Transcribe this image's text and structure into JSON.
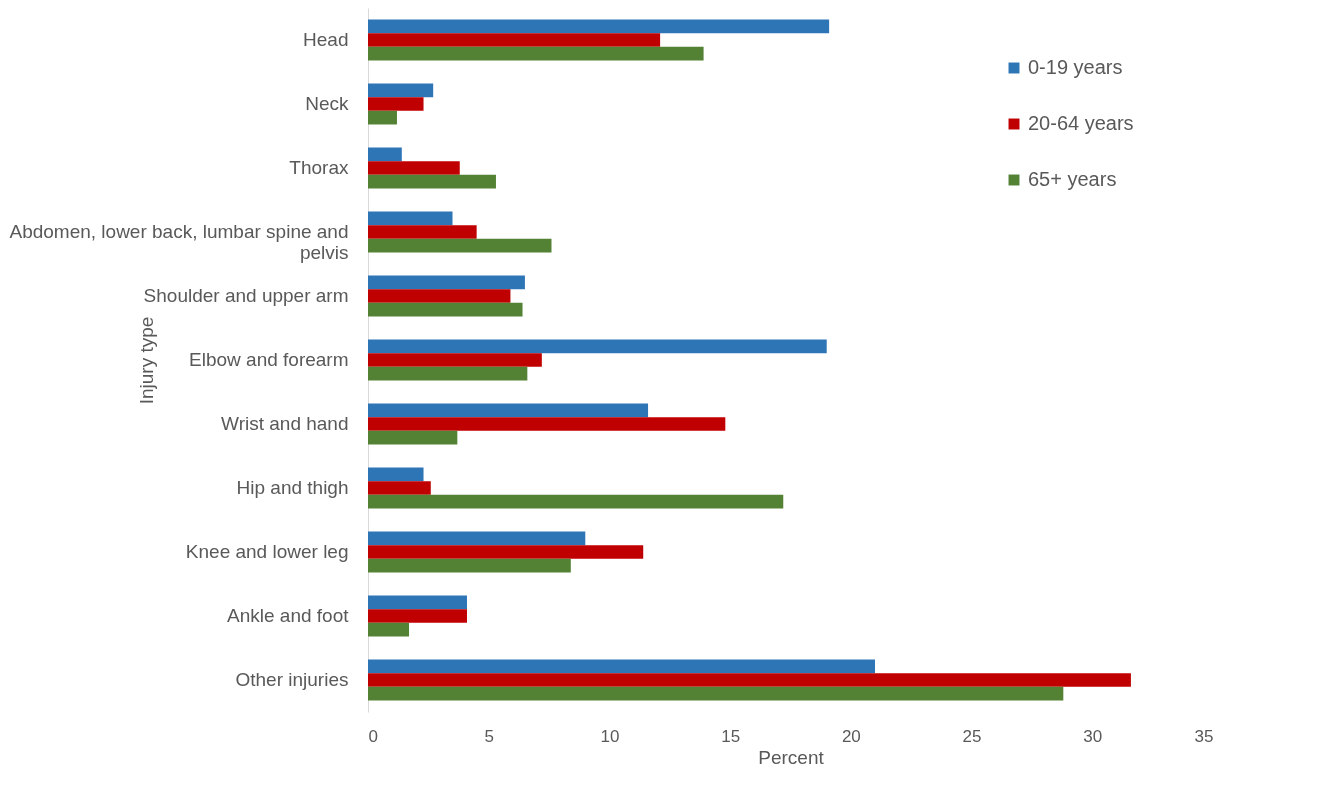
{
  "chart_data": {
    "type": "bar",
    "orientation": "horizontal",
    "xlabel": "Percent",
    "ylabel": "Injury type",
    "categories": [
      "Head",
      "Neck",
      "Thorax",
      "Abdomen, lower back, lumbar spine and pelvis",
      "Shoulder and upper arm",
      "Elbow and forearm",
      "Wrist and hand",
      "Hip and thigh",
      "Knee and lower leg",
      "Ankle and foot",
      "Other injuries"
    ],
    "series": [
      {
        "name": "0-19 years",
        "color": "#2e75b6",
        "values": [
          19.1,
          2.7,
          1.4,
          3.5,
          6.5,
          19.0,
          11.6,
          2.3,
          9.0,
          4.1,
          21.0
        ]
      },
      {
        "name": "20-64 years",
        "color": "#c00000",
        "values": [
          12.1,
          2.3,
          3.8,
          4.5,
          5.9,
          7.2,
          14.8,
          2.6,
          11.4,
          4.1,
          31.6
        ]
      },
      {
        "name": "65+ years",
        "color": "#548235",
        "values": [
          13.9,
          1.2,
          5.3,
          7.6,
          6.4,
          6.6,
          3.7,
          17.2,
          8.4,
          1.7,
          28.8
        ]
      }
    ],
    "xlim": [
      0,
      35
    ],
    "xticks": [
      0,
      5,
      10,
      15,
      20,
      25,
      30,
      35
    ],
    "grid": false,
    "legend": "top right"
  }
}
